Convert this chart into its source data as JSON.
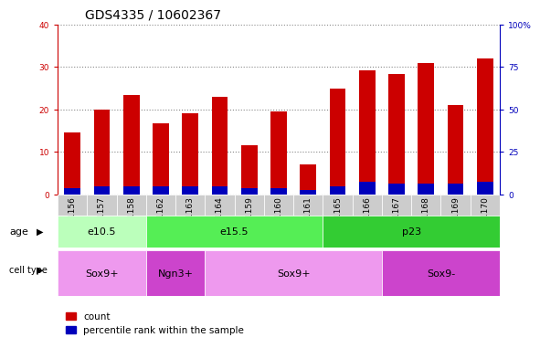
{
  "title": "GDS4335 / 10602367",
  "samples": [
    "GSM841156",
    "GSM841157",
    "GSM841158",
    "GSM841162",
    "GSM841163",
    "GSM841164",
    "GSM841159",
    "GSM841160",
    "GSM841161",
    "GSM841165",
    "GSM841166",
    "GSM841167",
    "GSM841168",
    "GSM841169",
    "GSM841170"
  ],
  "counts": [
    14.7,
    20.0,
    23.5,
    16.8,
    19.2,
    23.0,
    11.5,
    19.5,
    7.0,
    25.0,
    29.2,
    28.3,
    31.0,
    21.0,
    32.0
  ],
  "percentile_ranks": [
    1.5,
    2.0,
    2.0,
    2.0,
    2.0,
    2.0,
    1.5,
    1.5,
    1.0,
    2.0,
    3.0,
    2.5,
    2.5,
    2.5,
    3.0
  ],
  "count_color": "#cc0000",
  "percentile_color": "#0000bb",
  "left_ylim": [
    0,
    40
  ],
  "right_ylim": [
    0,
    100
  ],
  "left_yticks": [
    0,
    10,
    20,
    30,
    40
  ],
  "right_yticks": [
    0,
    25,
    50,
    75,
    100
  ],
  "right_yticklabels": [
    "0",
    "25",
    "50",
    "75",
    "100%"
  ],
  "left_ycolor": "#cc0000",
  "right_ycolor": "#0000bb",
  "grid_color": "#888888",
  "age_groups": [
    {
      "label": "e10.5",
      "start": 0,
      "end": 3,
      "color": "#bbffbb"
    },
    {
      "label": "e15.5",
      "start": 3,
      "end": 9,
      "color": "#55ee55"
    },
    {
      "label": "p23",
      "start": 9,
      "end": 15,
      "color": "#33cc33"
    }
  ],
  "cell_type_groups": [
    {
      "label": "Sox9+",
      "start": 0,
      "end": 3,
      "color": "#ee99ee"
    },
    {
      "label": "Ngn3+",
      "start": 3,
      "end": 5,
      "color": "#cc44cc"
    },
    {
      "label": "Sox9+",
      "start": 5,
      "end": 11,
      "color": "#ee99ee"
    },
    {
      "label": "Sox9-",
      "start": 11,
      "end": 15,
      "color": "#cc44cc"
    }
  ],
  "bar_width": 0.55,
  "tick_label_fontsize": 6.5,
  "axis_label_fontsize": 8,
  "title_fontsize": 10,
  "legend_fontsize": 7.5,
  "annotation_fontsize": 8,
  "bg_color": "#ffffff",
  "plot_bg_color": "#ffffff",
  "xticklabel_bg": "#cccccc"
}
